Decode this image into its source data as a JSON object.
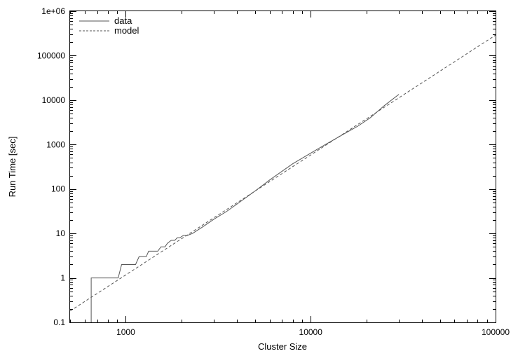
{
  "chart_data": {
    "type": "line",
    "title": "",
    "xlabel": "Cluster Size",
    "ylabel": "Run Time [sec]",
    "x_scale": "log",
    "y_scale": "log",
    "xlim": [
      500,
      100000
    ],
    "ylim": [
      0.1,
      1000000
    ],
    "x_tick_labels": [
      "1000",
      "10000",
      "100000"
    ],
    "y_tick_labels": [
      "0.1",
      "1",
      "10",
      "100",
      "1000",
      "10000",
      "100000",
      "1e+06"
    ],
    "grid": false,
    "legend_position": "top-left",
    "series": [
      {
        "name": "data",
        "style": "solid",
        "color": "#555555",
        "points": [
          [
            650,
            0.1
          ],
          [
            650,
            1
          ],
          [
            910,
            1
          ],
          [
            950,
            2
          ],
          [
            1130,
            2
          ],
          [
            1180,
            3
          ],
          [
            1290,
            3
          ],
          [
            1330,
            4
          ],
          [
            1490,
            4
          ],
          [
            1550,
            5
          ],
          [
            1630,
            5
          ],
          [
            1680,
            6
          ],
          [
            1760,
            7
          ],
          [
            1840,
            7
          ],
          [
            1900,
            8
          ],
          [
            1960,
            8
          ],
          [
            2050,
            9
          ],
          [
            2150,
            9
          ],
          [
            2300,
            10
          ],
          [
            2600,
            14
          ],
          [
            3000,
            21
          ],
          [
            3500,
            31
          ],
          [
            4000,
            46
          ],
          [
            5000,
            90
          ],
          [
            6000,
            160
          ],
          [
            8000,
            370
          ],
          [
            10000,
            640
          ],
          [
            12000,
            1000
          ],
          [
            15000,
            1700
          ],
          [
            18000,
            2600
          ],
          [
            21000,
            4000
          ],
          [
            25000,
            7500
          ],
          [
            30000,
            13500
          ]
        ]
      },
      {
        "name": "model",
        "style": "dashed",
        "color": "#555555",
        "points": [
          [
            500,
            0.18
          ],
          [
            100000,
            290000
          ]
        ]
      }
    ]
  }
}
